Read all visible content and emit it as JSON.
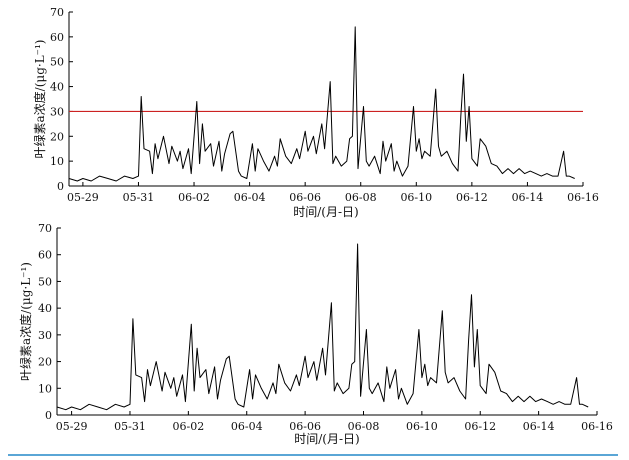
{
  "accent_line_color": "#5aa6d6",
  "threshold_color": "#cc2222",
  "chart_data": [
    {
      "type": "line",
      "xlabel": "时间/(月-日)",
      "ylabel": "叶绿素a浓度/(μg·L⁻¹)",
      "ylim": [
        0,
        70
      ],
      "xlim": [
        0,
        18.5
      ],
      "yticks": [
        "0",
        "10",
        "20",
        "30",
        "40",
        "50",
        "60",
        "70"
      ],
      "xticks": [
        "05-29",
        "05-31",
        "06-02",
        "06-04",
        "06-06",
        "06-08",
        "06-10",
        "06-12",
        "06-14",
        "06-16"
      ],
      "xtick_positions": [
        0.5,
        2.5,
        4.5,
        6.5,
        8.5,
        10.5,
        12.5,
        14.5,
        16.5,
        18.5
      ],
      "threshold": 30,
      "grid": false,
      "series": [
        {
          "points": [
            [
              0.0,
              3
            ],
            [
              0.3,
              2
            ],
            [
              0.5,
              3
            ],
            [
              0.8,
              2
            ],
            [
              1.1,
              4
            ],
            [
              1.4,
              3
            ],
            [
              1.7,
              2
            ],
            [
              2.0,
              4
            ],
            [
              2.3,
              3
            ],
            [
              2.5,
              4
            ],
            [
              2.6,
              36
            ],
            [
              2.7,
              15
            ],
            [
              2.9,
              14
            ],
            [
              3.0,
              5
            ],
            [
              3.1,
              17
            ],
            [
              3.2,
              11
            ],
            [
              3.4,
              20
            ],
            [
              3.6,
              9
            ],
            [
              3.7,
              16
            ],
            [
              3.9,
              10
            ],
            [
              4.0,
              14
            ],
            [
              4.1,
              7
            ],
            [
              4.3,
              15
            ],
            [
              4.4,
              5
            ],
            [
              4.6,
              34
            ],
            [
              4.7,
              9
            ],
            [
              4.8,
              25
            ],
            [
              4.9,
              14
            ],
            [
              5.1,
              17
            ],
            [
              5.2,
              8
            ],
            [
              5.4,
              18
            ],
            [
              5.5,
              6
            ],
            [
              5.6,
              13
            ],
            [
              5.8,
              21
            ],
            [
              5.9,
              22
            ],
            [
              6.1,
              6
            ],
            [
              6.2,
              4
            ],
            [
              6.4,
              3
            ],
            [
              6.6,
              17
            ],
            [
              6.7,
              6
            ],
            [
              6.8,
              15
            ],
            [
              7.0,
              10
            ],
            [
              7.2,
              6
            ],
            [
              7.4,
              12
            ],
            [
              7.5,
              8
            ],
            [
              7.6,
              19
            ],
            [
              7.8,
              12
            ],
            [
              8.0,
              9
            ],
            [
              8.2,
              15
            ],
            [
              8.3,
              11
            ],
            [
              8.5,
              22
            ],
            [
              8.6,
              14
            ],
            [
              8.8,
              20
            ],
            [
              8.9,
              13
            ],
            [
              9.1,
              25
            ],
            [
              9.2,
              15
            ],
            [
              9.4,
              42
            ],
            [
              9.5,
              9
            ],
            [
              9.6,
              12
            ],
            [
              9.8,
              8
            ],
            [
              10.0,
              10
            ],
            [
              10.1,
              19
            ],
            [
              10.2,
              20
            ],
            [
              10.3,
              64
            ],
            [
              10.4,
              7
            ],
            [
              10.6,
              32
            ],
            [
              10.7,
              10
            ],
            [
              10.8,
              8
            ],
            [
              11.0,
              12
            ],
            [
              11.2,
              5
            ],
            [
              11.3,
              18
            ],
            [
              11.4,
              10
            ],
            [
              11.6,
              17
            ],
            [
              11.7,
              6
            ],
            [
              11.8,
              10
            ],
            [
              12.0,
              4
            ],
            [
              12.2,
              8
            ],
            [
              12.4,
              32
            ],
            [
              12.5,
              14
            ],
            [
              12.6,
              19
            ],
            [
              12.7,
              11
            ],
            [
              12.8,
              14
            ],
            [
              13.0,
              12
            ],
            [
              13.2,
              39
            ],
            [
              13.3,
              16
            ],
            [
              13.4,
              12
            ],
            [
              13.6,
              14
            ],
            [
              13.8,
              9
            ],
            [
              14.0,
              6
            ],
            [
              14.1,
              28
            ],
            [
              14.2,
              45
            ],
            [
              14.3,
              18
            ],
            [
              14.4,
              32
            ],
            [
              14.5,
              11
            ],
            [
              14.7,
              8
            ],
            [
              14.8,
              19
            ],
            [
              15.0,
              16
            ],
            [
              15.2,
              9
            ],
            [
              15.4,
              8
            ],
            [
              15.6,
              5
            ],
            [
              15.8,
              7
            ],
            [
              16.0,
              5
            ],
            [
              16.2,
              7
            ],
            [
              16.4,
              5
            ],
            [
              16.6,
              6
            ],
            [
              16.8,
              5
            ],
            [
              17.0,
              4
            ],
            [
              17.2,
              5
            ],
            [
              17.4,
              4
            ],
            [
              17.6,
              4
            ],
            [
              17.8,
              14
            ],
            [
              17.9,
              4
            ],
            [
              18.0,
              4
            ],
            [
              18.2,
              3
            ]
          ]
        }
      ]
    },
    {
      "type": "line",
      "xlabel": "时间/(月-日)",
      "ylabel": "叶绿素a浓度/(μg·L⁻¹)",
      "ylim": [
        0,
        70
      ],
      "xlim": [
        0,
        18.5
      ],
      "yticks": [
        "0",
        "10",
        "20",
        "30",
        "40",
        "50",
        "60",
        "70"
      ],
      "xticks": [
        "05-29",
        "05-31",
        "06-02",
        "06-04",
        "06-06",
        "06-08",
        "06-10",
        "06-12",
        "06-14",
        "06-16"
      ],
      "xtick_positions": [
        0.5,
        2.5,
        4.5,
        6.5,
        8.5,
        10.5,
        12.5,
        14.5,
        16.5,
        18.5
      ],
      "grid": false,
      "series": [
        {
          "points": [
            [
              0.0,
              3
            ],
            [
              0.3,
              2
            ],
            [
              0.5,
              3
            ],
            [
              0.8,
              2
            ],
            [
              1.1,
              4
            ],
            [
              1.4,
              3
            ],
            [
              1.7,
              2
            ],
            [
              2.0,
              4
            ],
            [
              2.3,
              3
            ],
            [
              2.5,
              4
            ],
            [
              2.6,
              36
            ],
            [
              2.7,
              15
            ],
            [
              2.9,
              14
            ],
            [
              3.0,
              5
            ],
            [
              3.1,
              17
            ],
            [
              3.2,
              11
            ],
            [
              3.4,
              20
            ],
            [
              3.6,
              9
            ],
            [
              3.7,
              16
            ],
            [
              3.9,
              10
            ],
            [
              4.0,
              14
            ],
            [
              4.1,
              7
            ],
            [
              4.3,
              15
            ],
            [
              4.4,
              5
            ],
            [
              4.6,
              34
            ],
            [
              4.7,
              9
            ],
            [
              4.8,
              25
            ],
            [
              4.9,
              14
            ],
            [
              5.1,
              17
            ],
            [
              5.2,
              8
            ],
            [
              5.4,
              18
            ],
            [
              5.5,
              6
            ],
            [
              5.6,
              13
            ],
            [
              5.8,
              21
            ],
            [
              5.9,
              22
            ],
            [
              6.1,
              6
            ],
            [
              6.2,
              4
            ],
            [
              6.4,
              3
            ],
            [
              6.6,
              17
            ],
            [
              6.7,
              6
            ],
            [
              6.8,
              15
            ],
            [
              7.0,
              10
            ],
            [
              7.2,
              6
            ],
            [
              7.4,
              12
            ],
            [
              7.5,
              8
            ],
            [
              7.6,
              19
            ],
            [
              7.8,
              12
            ],
            [
              8.0,
              9
            ],
            [
              8.2,
              15
            ],
            [
              8.3,
              11
            ],
            [
              8.5,
              22
            ],
            [
              8.6,
              14
            ],
            [
              8.8,
              20
            ],
            [
              8.9,
              13
            ],
            [
              9.1,
              25
            ],
            [
              9.2,
              15
            ],
            [
              9.4,
              42
            ],
            [
              9.5,
              9
            ],
            [
              9.6,
              12
            ],
            [
              9.8,
              8
            ],
            [
              10.0,
              10
            ],
            [
              10.1,
              19
            ],
            [
              10.2,
              20
            ],
            [
              10.3,
              64
            ],
            [
              10.4,
              7
            ],
            [
              10.6,
              32
            ],
            [
              10.7,
              10
            ],
            [
              10.8,
              8
            ],
            [
              11.0,
              12
            ],
            [
              11.2,
              5
            ],
            [
              11.3,
              18
            ],
            [
              11.4,
              10
            ],
            [
              11.6,
              17
            ],
            [
              11.7,
              6
            ],
            [
              11.8,
              10
            ],
            [
              12.0,
              4
            ],
            [
              12.2,
              8
            ],
            [
              12.4,
              32
            ],
            [
              12.5,
              14
            ],
            [
              12.6,
              19
            ],
            [
              12.7,
              11
            ],
            [
              12.8,
              14
            ],
            [
              13.0,
              12
            ],
            [
              13.2,
              39
            ],
            [
              13.3,
              16
            ],
            [
              13.4,
              12
            ],
            [
              13.6,
              14
            ],
            [
              13.8,
              9
            ],
            [
              14.0,
              6
            ],
            [
              14.1,
              28
            ],
            [
              14.2,
              45
            ],
            [
              14.3,
              18
            ],
            [
              14.4,
              32
            ],
            [
              14.5,
              11
            ],
            [
              14.7,
              8
            ],
            [
              14.8,
              19
            ],
            [
              15.0,
              16
            ],
            [
              15.2,
              9
            ],
            [
              15.4,
              8
            ],
            [
              15.6,
              5
            ],
            [
              15.8,
              7
            ],
            [
              16.0,
              5
            ],
            [
              16.2,
              7
            ],
            [
              16.4,
              5
            ],
            [
              16.6,
              6
            ],
            [
              16.8,
              5
            ],
            [
              17.0,
              4
            ],
            [
              17.2,
              5
            ],
            [
              17.4,
              4
            ],
            [
              17.6,
              4
            ],
            [
              17.8,
              14
            ],
            [
              17.9,
              4
            ],
            [
              18.0,
              4
            ],
            [
              18.2,
              3
            ]
          ]
        }
      ]
    }
  ]
}
